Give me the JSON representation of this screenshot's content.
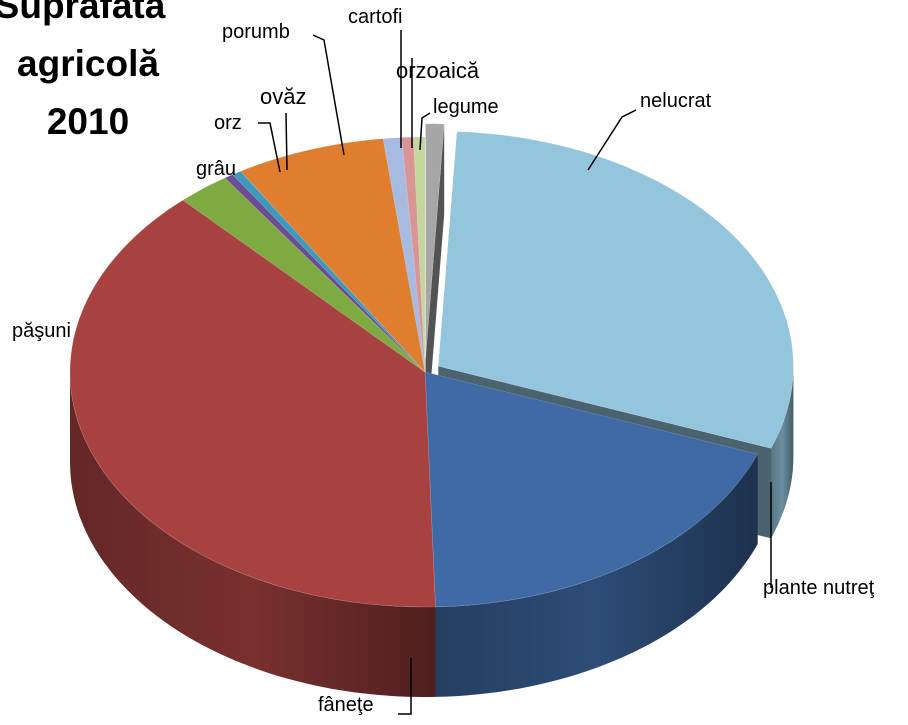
{
  "chart_data": {
    "type": "pie",
    "title_lines": [
      "Suprafata",
      "agricolă",
      "2010"
    ],
    "categories": [
      "nelucrat",
      "plante nutreţ",
      "fâneţe",
      "păşuni",
      "grâu",
      "orz",
      "ovăz",
      "porumb",
      "cartofi",
      "orzoaică",
      "legume"
    ],
    "values": [
      0.8,
      28.5,
      18.0,
      36.8,
      2.3,
      0.4,
      0.4,
      6.5,
      0.8,
      0.5,
      0.5
    ],
    "colors": [
      "#a6a6a6",
      "#93c6dd",
      "#3f6aa5",
      "#a84241",
      "#7faa42",
      "#6b4d94",
      "#3b9bbd",
      "#e07e2f",
      "#a7bbe0",
      "#d99594",
      "#c4d79b"
    ],
    "exploded": [
      "nelucrat",
      "plante nutreţ"
    ],
    "style": "3d"
  }
}
